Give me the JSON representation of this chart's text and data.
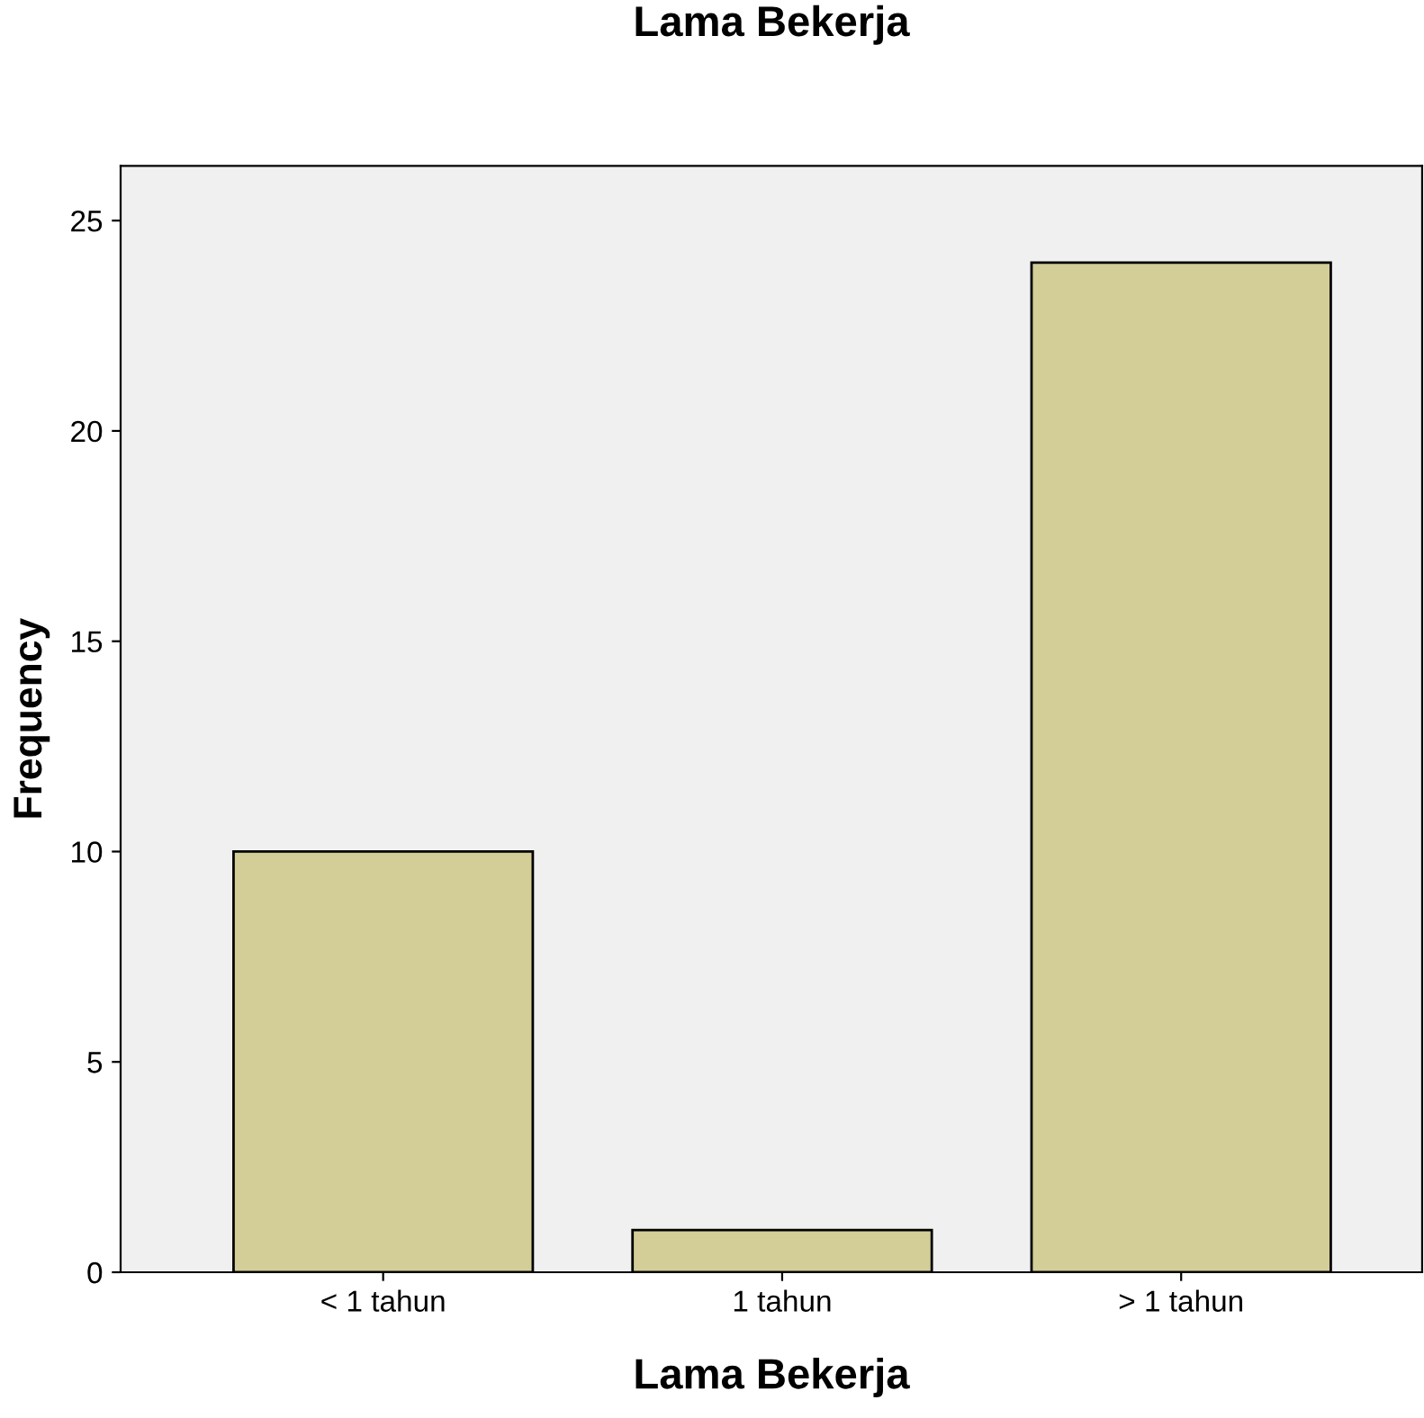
{
  "chart_data": {
    "type": "bar",
    "title": "Lama Bekerja",
    "xlabel": "Lama Bekerja",
    "ylabel": "Frequency",
    "categories": [
      "< 1 tahun",
      "1 tahun",
      "> 1 tahun"
    ],
    "values": [
      10,
      1,
      24
    ],
    "color": "#d3ce97",
    "ylim": [
      0,
      26.3
    ],
    "yticks": [
      0,
      5,
      10,
      15,
      20,
      25
    ],
    "grid": false,
    "legend": false
  }
}
